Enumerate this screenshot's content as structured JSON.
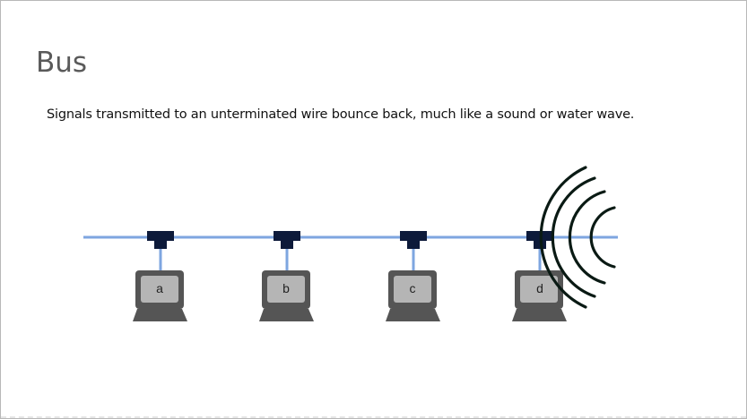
{
  "slide": {
    "title": "Bus",
    "caption": "Signals transmitted to an unterminated wire bounce back, much like a sound or water wave."
  },
  "diagram": {
    "computers": [
      {
        "label": "a"
      },
      {
        "label": "b"
      },
      {
        "label": "c"
      },
      {
        "label": "d"
      }
    ],
    "colors": {
      "bus_wire": "#7ea6e0",
      "tap_connector": "#0d1a3a",
      "computer_body": "#555555",
      "computer_screen": "#b5b5b5",
      "signal_wave": "#0a1a14",
      "label_text": "#222222"
    }
  }
}
